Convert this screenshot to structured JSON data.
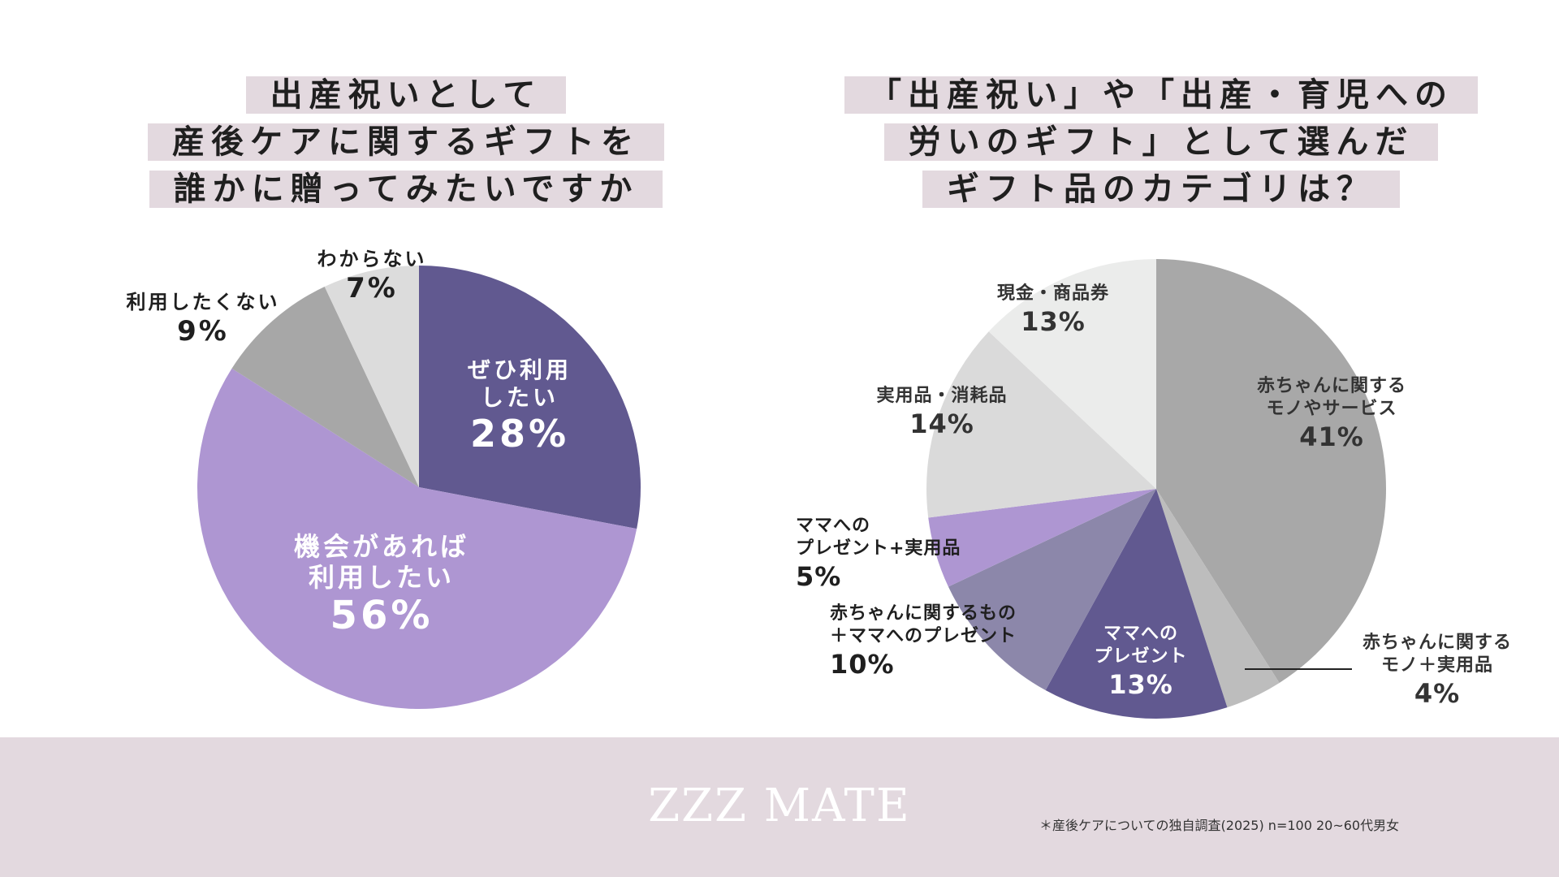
{
  "left_title": [
    "出産祝いとして",
    "産後ケアに関するギフトを",
    "誰かに贈ってみたいですか"
  ],
  "right_title": [
    "「出産祝い」や「出産・育児への",
    "労いのギフト」として選んだ",
    "ギフト品のカテゴリは？"
  ],
  "chart_data": [
    {
      "type": "pie",
      "title": "出産祝いとして産後ケアに関するギフトを誰かに贈ってみたいですか",
      "slices": [
        {
          "label": "ぜひ利用したい",
          "lines": [
            "ぜひ利用",
            "したい"
          ],
          "value": 28,
          "display": "28%",
          "color": "#615990"
        },
        {
          "label": "機会があれば利用したい",
          "lines": [
            "機会があれば",
            "利用したい"
          ],
          "value": 56,
          "display": "56%",
          "color": "#ae96d2"
        },
        {
          "label": "利用したくない",
          "lines": [
            "利用したくない"
          ],
          "value": 9,
          "display": "9%",
          "color": "#a7a7a7"
        },
        {
          "label": "わからない",
          "lines": [
            "わからない"
          ],
          "value": 7,
          "display": "7%",
          "color": "#dcdcdc"
        }
      ]
    },
    {
      "type": "pie",
      "title": "「出産祝い」や「出産・育児への労いのギフト」として選んだギフト品のカテゴリは？",
      "slices": [
        {
          "label": "赤ちゃんに関するモノやサービス",
          "lines": [
            "赤ちゃんに関する",
            "モノやサービス"
          ],
          "value": 41,
          "display": "41%",
          "color": "#a8a8a8"
        },
        {
          "label": "赤ちゃんに関するモノ＋実用品",
          "lines": [
            "赤ちゃんに関する",
            "モノ＋実用品"
          ],
          "value": 4,
          "display": "4%",
          "color": "#bdbdbd"
        },
        {
          "label": "ママへのプレゼント",
          "lines": [
            "ママへの",
            "プレゼント"
          ],
          "value": 13,
          "display": "13%",
          "color": "#615990"
        },
        {
          "label": "赤ちゃんに関するもの＋ママへのプレゼント",
          "lines": [
            "赤ちゃんに関するもの",
            "＋ママへのプレゼント"
          ],
          "value": 10,
          "display": "10%",
          "color": "#8c87aa"
        },
        {
          "label": "ママへのプレゼント+実用品",
          "lines": [
            "ママへの",
            "プレゼント+実用品"
          ],
          "value": 5,
          "display": "5%",
          "color": "#ae96d2"
        },
        {
          "label": "実用品・消耗品",
          "lines": [
            "実用品・消耗品"
          ],
          "value": 14,
          "display": "14%",
          "color": "#dadada"
        },
        {
          "label": "現金・商品券",
          "lines": [
            "現金・商品券"
          ],
          "value": 13,
          "display": "13%",
          "color": "#ebeceb"
        }
      ]
    }
  ],
  "footer": {
    "logo": "ZZZ MATE",
    "note": "＊産後ケアについての独自調査(2025) n=100 20~60代男女",
    "color": "#e3d9df"
  }
}
